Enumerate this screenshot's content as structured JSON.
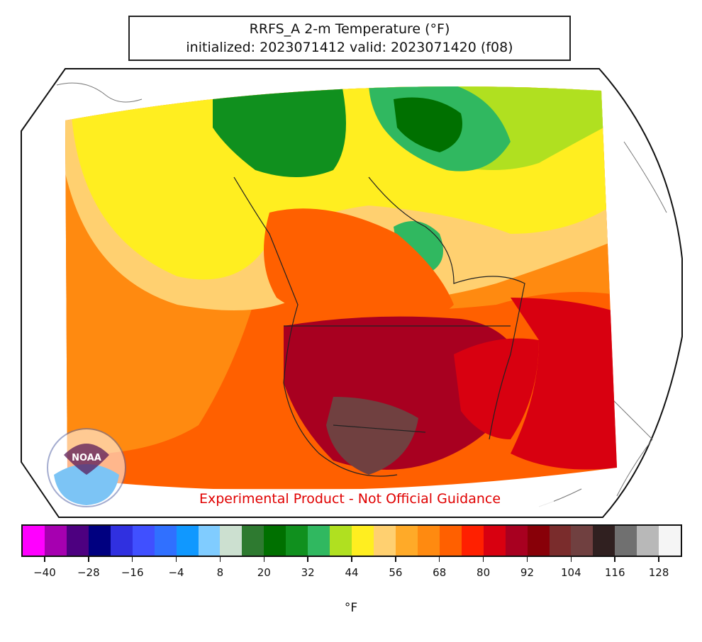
{
  "title": {
    "line1": "RRFS_A 2-m Temperature (°F)",
    "line2": "initialized: 2023071412 valid: 2023071420 (f08)"
  },
  "notice": "Experimental Product - Not Official Guidance",
  "logo": {
    "text": "NOAA",
    "icon": "noaa-logo"
  },
  "colorbar": {
    "unit": "°F",
    "colors": [
      "#ff00ff",
      "#a600b0",
      "#4d0080",
      "#000080",
      "#3030e0",
      "#4050ff",
      "#3070ff",
      "#1098ff",
      "#80ccff",
      "#cce0d0",
      "#2e7a30",
      "#007000",
      "#10901e",
      "#30b860",
      "#b0e020",
      "#ffee20",
      "#ffd070",
      "#ffaa28",
      "#ff8a10",
      "#ff6000",
      "#ff2000",
      "#d80010",
      "#a80020",
      "#880008",
      "#7a2c2c",
      "#704040",
      "#302020",
      "#707070",
      "#b8b8b8",
      "#f5f5f5"
    ],
    "tick_labels": [
      "−40",
      "−28",
      "−16",
      "−4",
      "8",
      "20",
      "32",
      "44",
      "56",
      "68",
      "80",
      "92",
      "104",
      "116",
      "128"
    ]
  },
  "colors": {
    "ocean_warm": "#ff6000",
    "land_hot": "#a80020",
    "canada_mid": "#ff8a10",
    "arctic_cool": "#10901e",
    "notice_red": "#e00000"
  }
}
